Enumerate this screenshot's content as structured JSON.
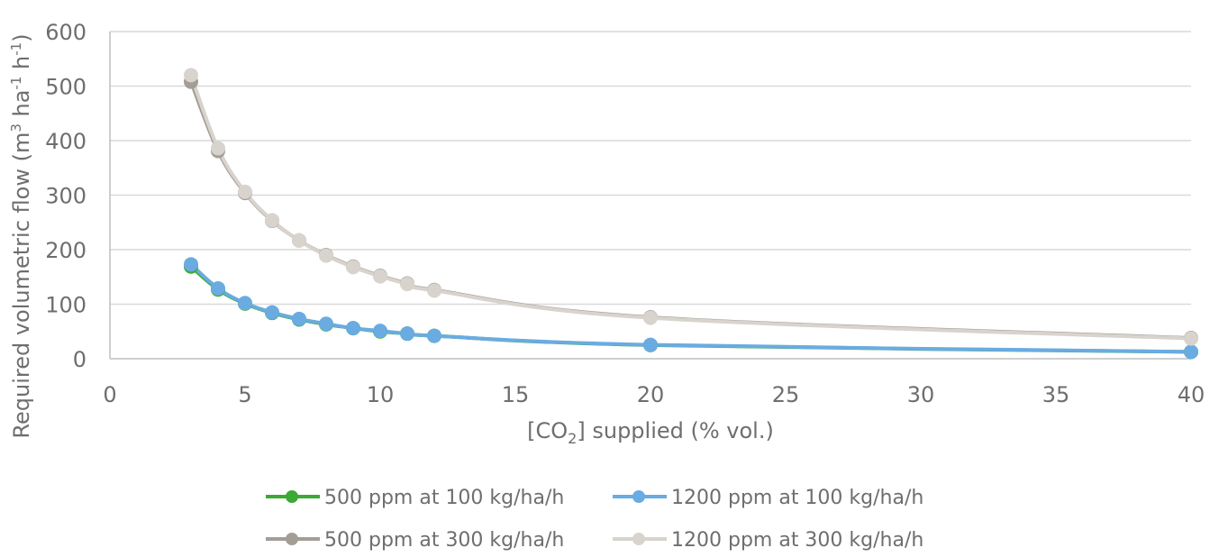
{
  "chart_data": {
    "type": "line",
    "title": "",
    "xlabel": {
      "prefix": "[CO",
      "sub": "2",
      "suffix": "] supplied (% vol.)"
    },
    "ylabel": {
      "prefix": "Required volumetric flow (m",
      "sup1": "3",
      "middle": " ha",
      "sup2": "-1",
      "middle2": " h",
      "sup3": "-1",
      "suffix": ")"
    },
    "xlim": [
      0,
      40
    ],
    "ylim": [
      0,
      600
    ],
    "x_ticks": [
      "0",
      "5",
      "10",
      "15",
      "20",
      "25",
      "30",
      "35",
      "40"
    ],
    "y_ticks": [
      "0",
      "100",
      "200",
      "300",
      "400",
      "500",
      "600"
    ],
    "grid": "horizontal",
    "legend_position": "bottom",
    "series": [
      {
        "name": "500 ppm at 100 kg/ha/h",
        "color": "#3aaa35",
        "x": [
          3,
          4,
          5,
          6,
          7,
          8,
          9,
          10,
          11,
          12,
          20,
          40
        ],
        "y": [
          169,
          127,
          101,
          84,
          72,
          63,
          56,
          50,
          46,
          42,
          25,
          12.6
        ]
      },
      {
        "name": "1200 ppm at 100 kg/ha/h",
        "color": "#6aabe2",
        "x": [
          3,
          4,
          5,
          6,
          7,
          8,
          9,
          10,
          11,
          12,
          20,
          40
        ],
        "y": [
          173,
          129,
          102,
          85,
          73,
          64,
          56,
          51,
          46,
          42,
          25.5,
          12.7
        ]
      },
      {
        "name": "500 ppm at 300 kg/ha/h",
        "color": "#a39d96",
        "x": [
          3,
          4,
          5,
          6,
          7,
          8,
          9,
          10,
          11,
          12,
          20,
          40
        ],
        "y": [
          508,
          381,
          304,
          253,
          217,
          190,
          169,
          152,
          138,
          126,
          76,
          38
        ]
      },
      {
        "name": "1200 ppm at 300 kg/ha/h",
        "color": "#d8d4cd",
        "x": [
          3,
          4,
          5,
          6,
          7,
          8,
          9,
          10,
          11,
          12,
          20,
          40
        ],
        "y": [
          520,
          386,
          306,
          254,
          217,
          189,
          168,
          151,
          137,
          125,
          75,
          37
        ]
      }
    ]
  }
}
